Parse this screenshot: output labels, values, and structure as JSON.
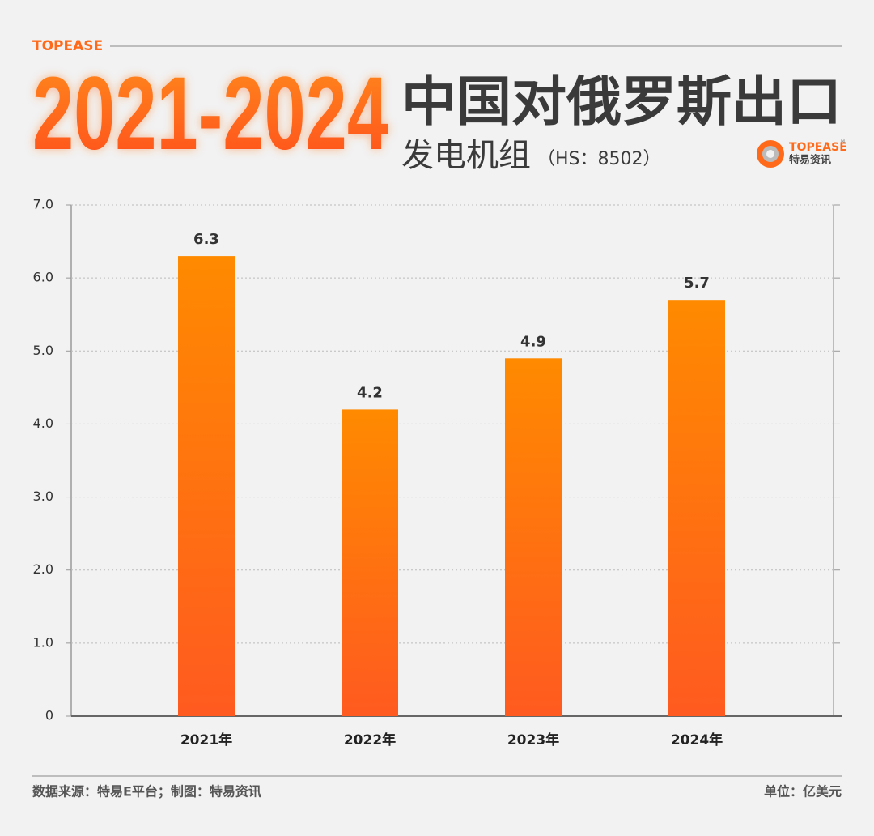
{
  "chart_data": {
    "type": "bar",
    "brand": "TOPEASE",
    "title_years": "2021-2024",
    "title": "中国对俄罗斯出口",
    "subtitle": "发电机组",
    "subtitle_note": "（HS：8502）",
    "logo_name": "TOPEASE",
    "logo_mark": "®",
    "logo_sub": "特易资讯",
    "categories": [
      "2021年",
      "2022年",
      "2023年",
      "2024年"
    ],
    "values": [
      6.3,
      4.2,
      4.9,
      5.7
    ],
    "color": "#ff8a00",
    "ylim": [
      0,
      7
    ],
    "yticks": [
      0,
      {
        "value": 1,
        "label": "1.0"
      },
      {
        "value": 2,
        "label": "2.0"
      },
      {
        "value": 3,
        "label": "3.0"
      },
      {
        "value": 4,
        "label": "4.0"
      },
      {
        "value": 5,
        "label": "5.0"
      },
      {
        "value": 6,
        "label": "6.0"
      },
      {
        "value": 7,
        "label": "7.0"
      }
    ],
    "grid": true,
    "source": "数据来源：特易E平台；制图：特易资讯",
    "unit": "单位：亿美元"
  }
}
